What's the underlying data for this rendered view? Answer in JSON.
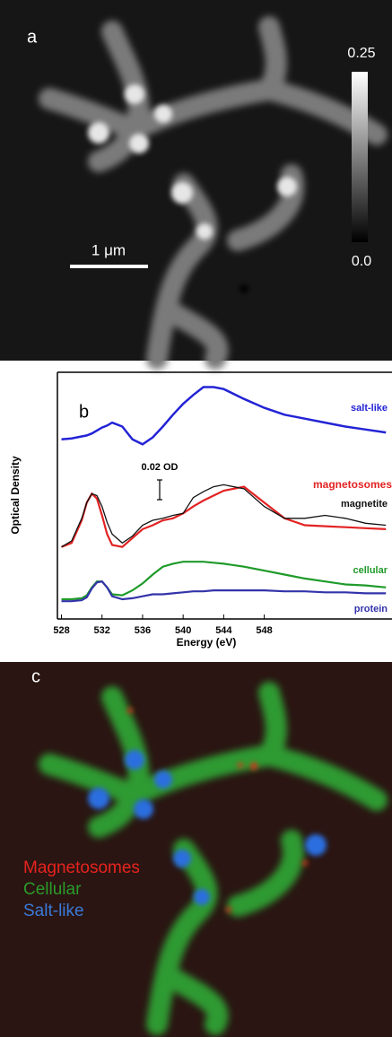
{
  "panel_a": {
    "label": "a",
    "scale_bar": "1 μm",
    "colorbar": {
      "lim": [
        0,
        0.25
      ],
      "ticks": [
        0.25,
        {
          "value": 0,
          "label": "0.0"
        }
      ]
    }
  },
  "chart_data": {
    "type": "line",
    "panel_label": "b",
    "xlabel": "Energy (eV)",
    "ylabel": "Optical Density",
    "x": [
      528,
      529,
      530,
      530.5,
      531,
      531.5,
      532,
      532.5,
      533,
      534,
      535,
      536,
      537,
      538,
      539,
      540,
      541,
      542,
      543,
      544,
      546,
      548,
      550,
      552,
      554,
      556,
      558,
      560
    ],
    "xlim": [
      527.6,
      560.6
    ],
    "xticks": [
      528,
      532,
      536,
      540,
      544,
      548
    ],
    "ylim": [
      0,
      0.25
    ],
    "scale_bar": {
      "value": 0.02,
      "label": "0.02 OD"
    },
    "series": [
      {
        "name": "salt-like",
        "color": "#2323d6",
        "values": [
          0.182,
          0.183,
          0.185,
          0.186,
          0.188,
          0.191,
          0.194,
          0.196,
          0.199,
          0.195,
          0.182,
          0.177,
          0.184,
          0.195,
          0.207,
          0.218,
          0.227,
          0.235,
          0.235,
          0.233,
          0.223,
          0.214,
          0.207,
          0.203,
          0.199,
          0.195,
          0.192,
          0.189
        ]
      },
      {
        "name": "magnetosomes",
        "color": "#e32222",
        "values": [
          0.073,
          0.077,
          0.1,
          0.118,
          0.127,
          0.122,
          0.105,
          0.086,
          0.075,
          0.073,
          0.082,
          0.091,
          0.095,
          0.1,
          0.102,
          0.107,
          0.114,
          0.12,
          0.125,
          0.13,
          0.134,
          0.118,
          0.102,
          0.095,
          0.094,
          0.093,
          0.092,
          0.091
        ]
      },
      {
        "name": "magnetite",
        "color": "#111111",
        "values": [
          0.073,
          0.079,
          0.102,
          0.118,
          0.127,
          0.125,
          0.114,
          0.098,
          0.086,
          0.077,
          0.084,
          0.095,
          0.1,
          0.102,
          0.105,
          0.107,
          0.123,
          0.129,
          0.134,
          0.136,
          0.132,
          0.114,
          0.102,
          0.102,
          0.105,
          0.102,
          0.097,
          0.095
        ]
      },
      {
        "name": "cellular",
        "color": "#1f9a2a",
        "values": [
          0.02,
          0.02,
          0.021,
          0.024,
          0.032,
          0.038,
          0.038,
          0.032,
          0.025,
          0.024,
          0.029,
          0.036,
          0.045,
          0.053,
          0.056,
          0.058,
          0.058,
          0.058,
          0.057,
          0.056,
          0.053,
          0.049,
          0.045,
          0.041,
          0.038,
          0.035,
          0.034,
          0.032
        ]
      },
      {
        "name": "protein",
        "color": "#3333aa",
        "values": [
          0.018,
          0.018,
          0.019,
          0.022,
          0.031,
          0.037,
          0.038,
          0.032,
          0.023,
          0.02,
          0.021,
          0.023,
          0.025,
          0.025,
          0.026,
          0.027,
          0.028,
          0.028,
          0.029,
          0.029,
          0.029,
          0.029,
          0.028,
          0.028,
          0.027,
          0.027,
          0.026,
          0.026
        ]
      }
    ]
  },
  "panel_c": {
    "label": "c",
    "legend": [
      {
        "name": "Magnetosomes",
        "color": "#e8231f"
      },
      {
        "name": "Cellular",
        "color": "#2a9a2a"
      },
      {
        "name": "Salt-like",
        "color": "#3a7ad8"
      }
    ]
  }
}
